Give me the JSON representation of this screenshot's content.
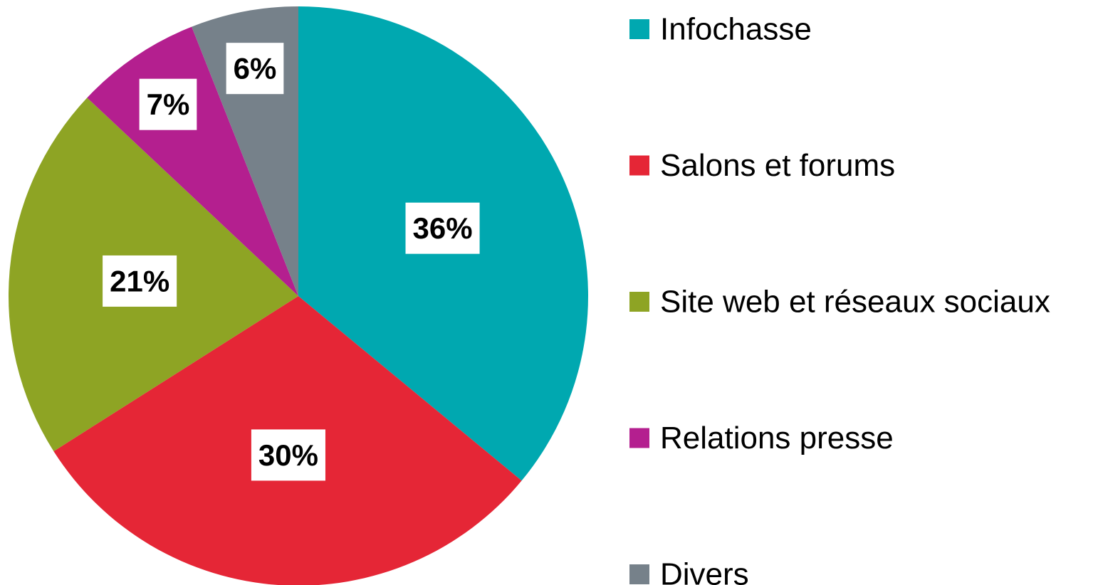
{
  "chart_data": {
    "type": "pie",
    "categories": [
      "Infochasse",
      "Salons et forums",
      "Site web et réseaux sociaux",
      "Relations presse",
      "Divers"
    ],
    "values": [
      36,
      30,
      21,
      7,
      6
    ],
    "value_labels": [
      "36%",
      "30%",
      "21%",
      "7%",
      "6%"
    ],
    "colors": [
      "#00a8b0",
      "#e52636",
      "#8ea424",
      "#b41f8f",
      "#76818a"
    ],
    "legend": "right"
  }
}
